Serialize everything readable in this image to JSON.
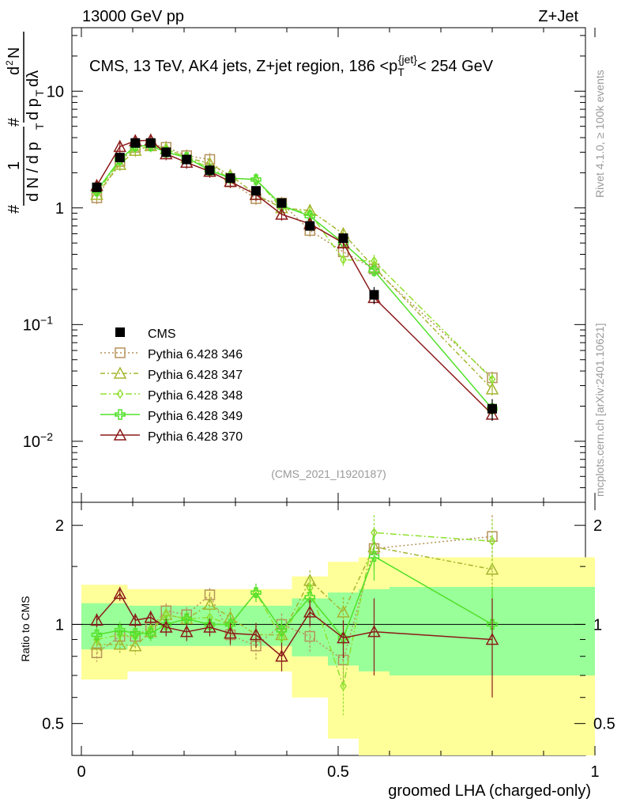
{
  "header": {
    "left": "13000 GeV pp",
    "right": "Z+Jet"
  },
  "side_labels": {
    "rivet": "Rivet 4.1.0, ≥ 100k events",
    "mcplots": "mcplots.cern.ch [arXiv:2401.10621]"
  },
  "colors": {
    "data": "#000000",
    "p346": "#b5925a",
    "p347": "#a5b530",
    "p348": "#90e030",
    "p349": "#50e028",
    "p370": "#8b1a1a",
    "band_green": "#99ff99",
    "band_yellow": "#ffff99"
  },
  "chart_data": {
    "type": "line",
    "title": "CMS, 13 TeV, AK4 jets, Z+jet region, 186 <p_T^{jet}< 254 GeV",
    "analysis_label": "(CMS_2021_I1920187)",
    "xlabel": "groomed LHA (charged-only)",
    "ylabel": "1/dN/dp_T  d²N/(dp_T dλ)",
    "ratio_ylabel": "Ratio to CMS",
    "xlim": [
      0,
      1
    ],
    "ylim": [
      0.003,
      35
    ],
    "yscale": "log",
    "ratio_ylim": [
      0.4,
      2.35
    ],
    "ratio_yscale": "log",
    "x_ticks": [
      "0",
      "0.5",
      "1"
    ],
    "y_ticks": [
      "10^-2",
      "10^-1",
      "1",
      "10"
    ],
    "ratio_ticks": [
      "0.5",
      "1",
      "2"
    ],
    "bins": [
      [
        0,
        0.06
      ],
      [
        0.06,
        0.09
      ],
      [
        0.09,
        0.12
      ],
      [
        0.12,
        0.15
      ],
      [
        0.15,
        0.18
      ],
      [
        0.18,
        0.23
      ],
      [
        0.23,
        0.27
      ],
      [
        0.27,
        0.31
      ],
      [
        0.31,
        0.37
      ],
      [
        0.37,
        0.41
      ],
      [
        0.41,
        0.48
      ],
      [
        0.48,
        0.54
      ],
      [
        0.54,
        0.6
      ],
      [
        0.6,
        1.0
      ]
    ],
    "x": [
      0.03,
      0.075,
      0.105,
      0.135,
      0.165,
      0.205,
      0.25,
      0.29,
      0.34,
      0.39,
      0.445,
      0.51,
      0.57,
      0.8
    ],
    "data": {
      "name": "CMS",
      "values": [
        1.5,
        2.7,
        3.6,
        3.6,
        3.0,
        2.6,
        2.1,
        1.8,
        1.4,
        1.1,
        0.7,
        0.55,
        0.18,
        0.019
      ],
      "errors": [
        0.1,
        0.1,
        0.1,
        0.1,
        0.1,
        0.1,
        0.1,
        0.08,
        0.08,
        0.06,
        0.05,
        0.05,
        0.03,
        0.004
      ]
    },
    "ratio_band_green": [
      0.16,
      0.16,
      0.14,
      0.14,
      0.14,
      0.14,
      0.14,
      0.14,
      0.14,
      0.14,
      0.2,
      0.25,
      0.28,
      0.3
    ],
    "ratio_band_yellow": [
      0.32,
      0.32,
      0.28,
      0.28,
      0.28,
      0.28,
      0.28,
      0.28,
      0.28,
      0.28,
      0.4,
      0.55,
      0.6,
      0.6
    ],
    "series": [
      {
        "name": "Pythia 6.428 346",
        "key": "p346",
        "marker": "square",
        "dash": "2,3",
        "values": [
          1.22,
          2.5,
          3.3,
          3.5,
          3.3,
          2.8,
          2.6,
          1.67,
          1.2,
          1.1,
          0.64,
          0.42,
          0.3,
          0.035
        ],
        "ratio": [
          0.82,
          0.92,
          0.92,
          0.98,
          1.1,
          1.07,
          1.23,
          0.93,
          0.86,
          1.0,
          0.92,
          0.78,
          1.7,
          1.85
        ],
        "ratio_err": [
          0.05,
          0.06,
          0.05,
          0.05,
          0.06,
          0.06,
          0.06,
          0.07,
          0.08,
          0.08,
          0.1,
          0.12,
          0.25,
          0.3
        ]
      },
      {
        "name": "Pythia 6.428 347",
        "key": "p347",
        "marker": "triangle",
        "dash": "6,3,2,3",
        "values": [
          1.3,
          2.35,
          3.1,
          3.4,
          3.2,
          2.7,
          2.4,
          1.9,
          1.3,
          1.0,
          0.95,
          0.6,
          0.31,
          0.028
        ],
        "ratio": [
          0.87,
          0.87,
          0.86,
          0.95,
          1.07,
          1.04,
          1.15,
          1.05,
          0.93,
          0.93,
          1.36,
          1.09,
          1.72,
          1.47
        ],
        "ratio_err": [
          0.05,
          0.06,
          0.05,
          0.05,
          0.06,
          0.06,
          0.06,
          0.07,
          0.08,
          0.08,
          0.1,
          0.12,
          0.25,
          0.3
        ]
      },
      {
        "name": "Pythia 6.428 348",
        "key": "p348",
        "marker": "diamond",
        "dash": "8,3,2,3",
        "values": [
          1.35,
          2.5,
          3.3,
          3.5,
          3.2,
          2.7,
          2.2,
          1.8,
          1.75,
          1.0,
          0.9,
          0.36,
          0.35,
          0.034
        ],
        "ratio": [
          0.9,
          0.93,
          0.92,
          0.97,
          1.07,
          1.04,
          1.05,
          1.0,
          1.25,
          0.91,
          1.29,
          0.65,
          1.9,
          1.79
        ],
        "ratio_err": [
          0.05,
          0.06,
          0.05,
          0.05,
          0.06,
          0.06,
          0.06,
          0.07,
          0.08,
          0.08,
          0.1,
          0.12,
          0.25,
          0.3
        ]
      },
      {
        "name": "Pythia 6.428 349",
        "key": "p349",
        "marker": "cross",
        "dash": "",
        "values": [
          1.4,
          2.6,
          3.4,
          3.4,
          3.0,
          2.7,
          2.1,
          1.8,
          1.75,
          1.05,
          0.85,
          0.5,
          0.29,
          0.019
        ],
        "ratio": [
          0.93,
          0.96,
          0.94,
          0.94,
          1.0,
          1.04,
          1.0,
          1.0,
          1.25,
          0.96,
          1.21,
          0.91,
          1.61,
          1.0
        ],
        "ratio_err": [
          0.05,
          0.06,
          0.05,
          0.05,
          0.06,
          0.06,
          0.06,
          0.07,
          0.08,
          0.08,
          0.1,
          0.12,
          0.25,
          0.3
        ]
      },
      {
        "name": "Pythia 6.428 370",
        "key": "p370",
        "marker": "triangle",
        "dash": "",
        "values": [
          1.55,
          3.35,
          3.75,
          3.8,
          2.9,
          2.45,
          2.05,
          1.68,
          1.3,
          0.88,
          0.73,
          0.5,
          0.17,
          0.017
        ],
        "ratio": [
          1.03,
          1.24,
          1.03,
          1.05,
          0.98,
          0.95,
          0.98,
          0.94,
          0.93,
          0.8,
          1.09,
          0.91,
          0.95,
          0.9
        ],
        "ratio_err": [
          0.05,
          0.06,
          0.05,
          0.05,
          0.06,
          0.06,
          0.06,
          0.07,
          0.08,
          0.08,
          0.1,
          0.12,
          0.25,
          0.3
        ]
      }
    ]
  }
}
